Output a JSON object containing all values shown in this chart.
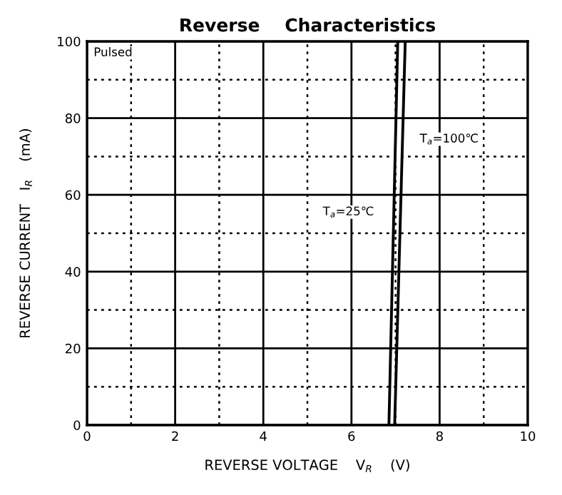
{
  "chart_data": {
    "type": "line",
    "title": "Reverse    Characteristics",
    "xlabel": "REVERSE VOLTAGE    V$_{R}$    (V)",
    "ylabel": "REVERSE CURRENT   I$_{R}$    (mA)",
    "series": [
      {
        "color": "#000000",
        "x": [
          6.85,
          7.05
        ],
        "values": [
          0,
          100
        ]
      },
      {
        "color": "#000000",
        "x": [
          6.98,
          7.22
        ],
        "values": [
          0,
          100
        ]
      }
    ],
    "annotations": [
      "Pulsed",
      "T$_{a}$=25℃",
      "T$_{a}$=100℃"
    ],
    "xlim": [
      0,
      10
    ],
    "ylim": [
      0,
      100
    ],
    "xticks": [
      0,
      {
        "value": 1,
        "label": null
      },
      2,
      {
        "value": 3,
        "label": null
      },
      4,
      {
        "value": 5,
        "label": null
      },
      6,
      {
        "value": 7,
        "label": null
      },
      8,
      {
        "value": 9,
        "label": null
      },
      10
    ],
    "yticks": [
      0,
      {
        "value": 10,
        "label": null
      },
      20,
      {
        "value": 30,
        "label": null
      },
      40,
      {
        "value": 50,
        "label": null
      },
      60,
      {
        "value": 70,
        "label": null
      },
      80,
      {
        "value": 90,
        "label": null
      },
      100
    ],
    "grid": true,
    "marker": "none",
    "line_style": "solid",
    "legend": false
  }
}
